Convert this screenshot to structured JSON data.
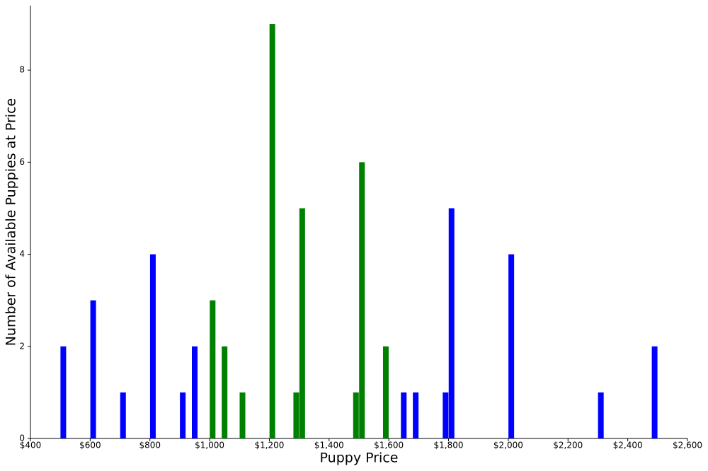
{
  "chart_data": {
    "type": "bar",
    "x_label": "Puppy Price",
    "y_label": "Number of Available Puppies at Price",
    "series": [
      {
        "color": "#0000ff",
        "x": [
          510,
          610,
          710,
          810,
          910,
          950,
          1650,
          1690,
          1790,
          1810,
          2010,
          2310,
          2490
        ],
        "values": [
          2,
          3,
          1,
          4,
          1,
          2,
          1,
          1,
          1,
          5,
          4,
          1,
          2
        ]
      },
      {
        "color": "#008000",
        "x": [
          1010,
          1050,
          1110,
          1210,
          1290,
          1310,
          1490,
          1510,
          1590
        ],
        "values": [
          3,
          2,
          1,
          9,
          1,
          5,
          1,
          6,
          2
        ]
      }
    ],
    "xlim": [
      400,
      2600
    ],
    "xticks": [
      {
        "value": 400,
        "label": "$400"
      },
      {
        "value": 600,
        "label": "$600"
      },
      {
        "value": 800,
        "label": "$800"
      },
      {
        "value": 1000,
        "label": "$1,000"
      },
      {
        "value": 1200,
        "label": "$1,200"
      },
      {
        "value": 1400,
        "label": "$1,400"
      },
      {
        "value": 1600,
        "label": "$1,600"
      },
      {
        "value": 1800,
        "label": "$1,800"
      },
      {
        "value": 2000,
        "label": "$2,000"
      },
      {
        "value": 2200,
        "label": "$2,200"
      },
      {
        "value": 2400,
        "label": "$2,400"
      },
      {
        "value": 2600,
        "label": "$2,600"
      }
    ],
    "ylim": [
      0,
      9.4
    ],
    "yticks": [
      0,
      2,
      4,
      6,
      8
    ],
    "grid": false
  }
}
